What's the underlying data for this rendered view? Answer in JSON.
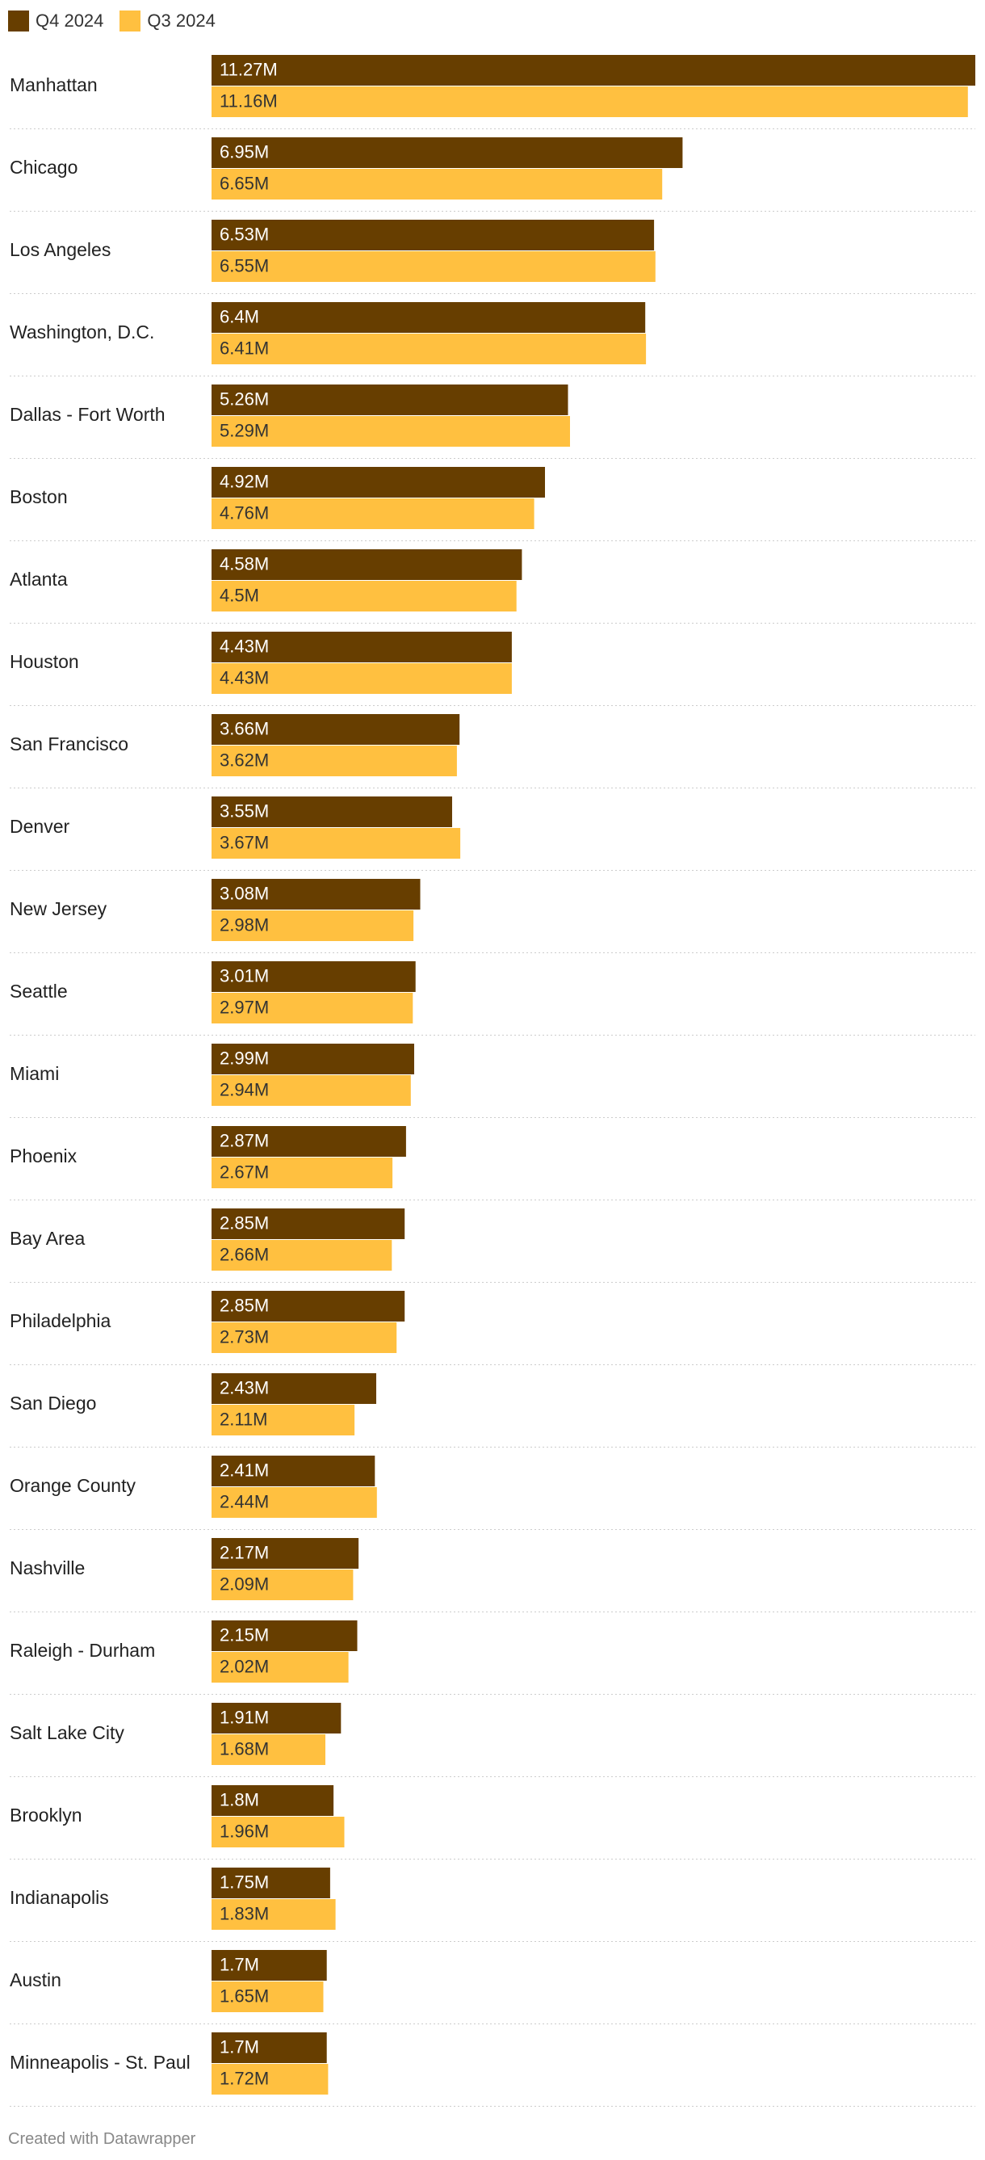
{
  "legend": [
    {
      "label": "Q4 2024",
      "color": "#673e00"
    },
    {
      "label": "Q3 2024",
      "color": "#ffc040"
    }
  ],
  "footer": "Created with Datawrapper",
  "chart_data": {
    "type": "bar",
    "orientation": "horizontal",
    "grouped": true,
    "categories": [
      "Manhattan",
      "Chicago",
      "Los Angeles",
      "Washington, D.C.",
      "Dallas - Fort Worth",
      "Boston",
      "Atlanta",
      "Houston",
      "San Francisco",
      "Denver",
      "New Jersey",
      "Seattle",
      "Miami",
      "Phoenix",
      "Bay Area",
      "Philadelphia",
      "San Diego",
      "Orange County",
      "Nashville",
      "Raleigh - Durham",
      "Salt Lake City",
      "Brooklyn",
      "Indianapolis",
      "Austin",
      "Minneapolis - St. Paul"
    ],
    "series": [
      {
        "name": "Q4 2024",
        "color": "#673e00",
        "label_color": "#ffffff",
        "values": [
          11.27,
          6.95,
          6.53,
          6.4,
          5.26,
          4.92,
          4.58,
          4.43,
          3.66,
          3.55,
          3.08,
          3.01,
          2.99,
          2.87,
          2.85,
          2.85,
          2.43,
          2.41,
          2.17,
          2.15,
          1.91,
          1.8,
          1.75,
          1.7,
          1.7
        ],
        "labels": [
          "11.27M",
          "6.95M",
          "6.53M",
          "6.4M",
          "5.26M",
          "4.92M",
          "4.58M",
          "4.43M",
          "3.66M",
          "3.55M",
          "3.08M",
          "3.01M",
          "2.99M",
          "2.87M",
          "2.85M",
          "2.85M",
          "2.43M",
          "2.41M",
          "2.17M",
          "2.15M",
          "1.91M",
          "1.8M",
          "1.75M",
          "1.7M",
          "1.7M"
        ]
      },
      {
        "name": "Q3 2024",
        "color": "#ffc040",
        "label_color": "#333333",
        "values": [
          11.16,
          6.65,
          6.55,
          6.41,
          5.29,
          4.76,
          4.5,
          4.43,
          3.62,
          3.67,
          2.98,
          2.97,
          2.94,
          2.67,
          2.66,
          2.73,
          2.11,
          2.44,
          2.09,
          2.02,
          1.68,
          1.96,
          1.83,
          1.65,
          1.72
        ],
        "labels": [
          "11.16M",
          "6.65M",
          "6.55M",
          "6.41M",
          "5.29M",
          "4.76M",
          "4.5M",
          "4.43M",
          "3.62M",
          "3.67M",
          "2.98M",
          "2.97M",
          "2.94M",
          "2.67M",
          "2.66M",
          "2.73M",
          "2.11M",
          "2.44M",
          "2.09M",
          "2.02M",
          "1.68M",
          "1.96M",
          "1.83M",
          "1.65M",
          "1.72M"
        ]
      }
    ],
    "xlim": [
      0,
      11.27
    ],
    "grid": false,
    "legend_position": "top-left"
  }
}
